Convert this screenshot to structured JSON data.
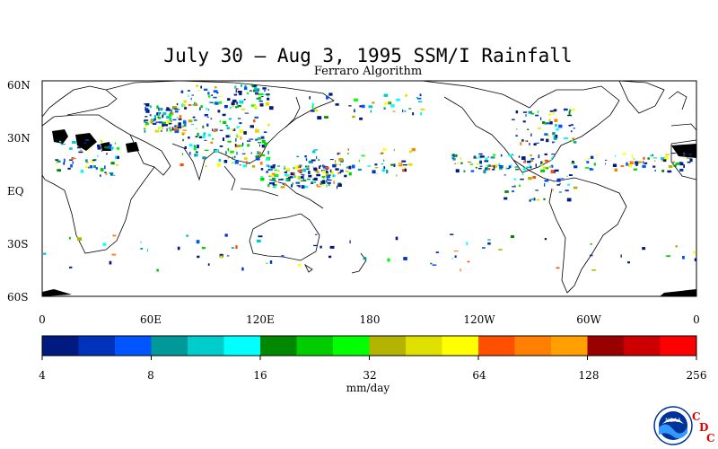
{
  "title": "July 30 – Aug 3, 1995 SSM/I Rainfall",
  "subtitle": "Ferraro Algorithm",
  "map": {
    "lat_labels": [
      "60N",
      "30N",
      "EQ",
      "30S",
      "60S"
    ],
    "lon_labels": [
      "0",
      "60E",
      "120E",
      "180",
      "120W",
      "60W",
      "0"
    ],
    "lat_range": [
      -60,
      60
    ],
    "lon_range": [
      0,
      360
    ]
  },
  "colorbar": {
    "units": "mm/day",
    "tick_labels": [
      "4",
      "8",
      "16",
      "32",
      "64",
      "128",
      "256"
    ],
    "colors": [
      "#001a80",
      "#0033bb",
      "#0055ff",
      "#009999",
      "#00cccc",
      "#00ffff",
      "#008800",
      "#00cc00",
      "#00ff00",
      "#b3b300",
      "#e0e000",
      "#ffff00",
      "#ff5000",
      "#ff8000",
      "#ffa000",
      "#990000",
      "#cc0000",
      "#ff0000"
    ]
  },
  "logo": {
    "lettering": "NOAA",
    "cdc_letters": [
      "C",
      "D",
      "C"
    ]
  }
}
